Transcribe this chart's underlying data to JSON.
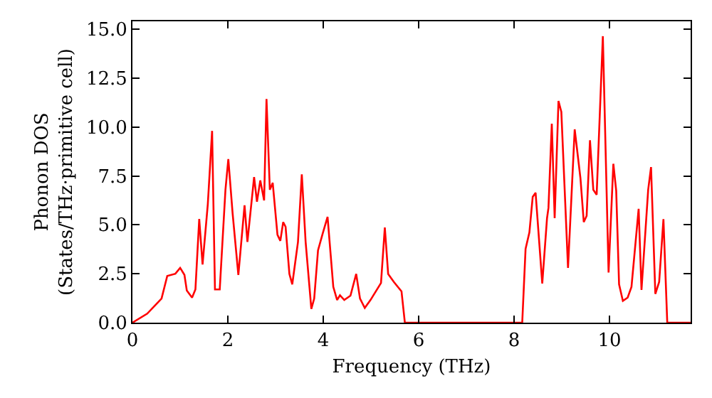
{
  "chart_data": {
    "type": "line",
    "xlabel": "Frequency (THz)",
    "ylabel": "Phonon DOS\n(States/THz·primitive cell)",
    "xlim": [
      0,
      11.7
    ],
    "ylim": [
      0,
      15.4
    ],
    "xticks": [
      0,
      2,
      4,
      6,
      8,
      10
    ],
    "yticks": [
      {
        "value": 0,
        "label": "0.0"
      },
      {
        "value": 2.5,
        "label": "2.5"
      },
      {
        "value": 5,
        "label": "5.0"
      },
      {
        "value": 7.5,
        "label": "7.5"
      },
      {
        "value": 10,
        "label": "10.0"
      },
      {
        "value": 12.5,
        "label": "12.5"
      },
      {
        "value": 15,
        "label": "15.0"
      }
    ],
    "line_style": "solid",
    "marker": "none",
    "series": [
      {
        "color": "#ff0000",
        "x": [
          0,
          0.31,
          0.61,
          0.73,
          0.9,
          1.0,
          1.09,
          1.14,
          1.25,
          1.32,
          1.4,
          1.47,
          1.58,
          1.67,
          1.73,
          1.83,
          1.95,
          2.01,
          2.1,
          2.22,
          2.35,
          2.41,
          2.55,
          2.61,
          2.68,
          2.76,
          2.81,
          2.88,
          2.94,
          3.04,
          3.1,
          3.16,
          3.21,
          3.29,
          3.35,
          3.47,
          3.55,
          3.63,
          3.75,
          3.81,
          3.89,
          3.99,
          4.09,
          4.21,
          4.29,
          4.35,
          4.44,
          4.57,
          4.69,
          4.77,
          4.87,
          4.99,
          5.21,
          5.29,
          5.36,
          5.48,
          5.64,
          5.71,
          8.17,
          8.24,
          8.32,
          8.39,
          8.45,
          8.59,
          8.69,
          8.72,
          8.79,
          8.85,
          8.93,
          8.99,
          9.13,
          9.27,
          9.39,
          9.46,
          9.52,
          9.59,
          9.66,
          9.73,
          9.86,
          9.98,
          10.08,
          10.14,
          10.2,
          10.28,
          10.38,
          10.46,
          10.61,
          10.67,
          10.81,
          10.87,
          10.96,
          11.04,
          11.13,
          11.21,
          11.7
        ],
        "values": [
          0,
          0.46,
          1.23,
          2.39,
          2.5,
          2.8,
          2.44,
          1.64,
          1.28,
          1.7,
          5.3,
          2.97,
          6.06,
          9.8,
          1.7,
          1.7,
          6.8,
          8.36,
          5.58,
          2.44,
          6.0,
          4.13,
          7.44,
          6.18,
          7.27,
          6.25,
          11.43,
          6.79,
          7.15,
          4.49,
          4.18,
          5.14,
          4.9,
          2.49,
          1.96,
          4.13,
          7.58,
          4.13,
          0.7,
          1.23,
          3.7,
          4.57,
          5.41,
          1.83,
          1.16,
          1.4,
          1.16,
          1.38,
          2.49,
          1.23,
          0.75,
          1.16,
          2.03,
          4.86,
          2.49,
          2.08,
          1.6,
          0,
          0,
          3.77,
          4.61,
          6.43,
          6.64,
          2.0,
          5.34,
          5.87,
          10.17,
          5.34,
          11.33,
          10.77,
          2.8,
          9.88,
          7.39,
          5.14,
          5.46,
          9.32,
          6.79,
          6.54,
          14.64,
          2.56,
          8.12,
          6.74,
          1.96,
          1.11,
          1.28,
          1.83,
          5.82,
          1.67,
          6.79,
          7.95,
          1.47,
          2.08,
          5.29,
          0,
          0
        ]
      }
    ]
  }
}
